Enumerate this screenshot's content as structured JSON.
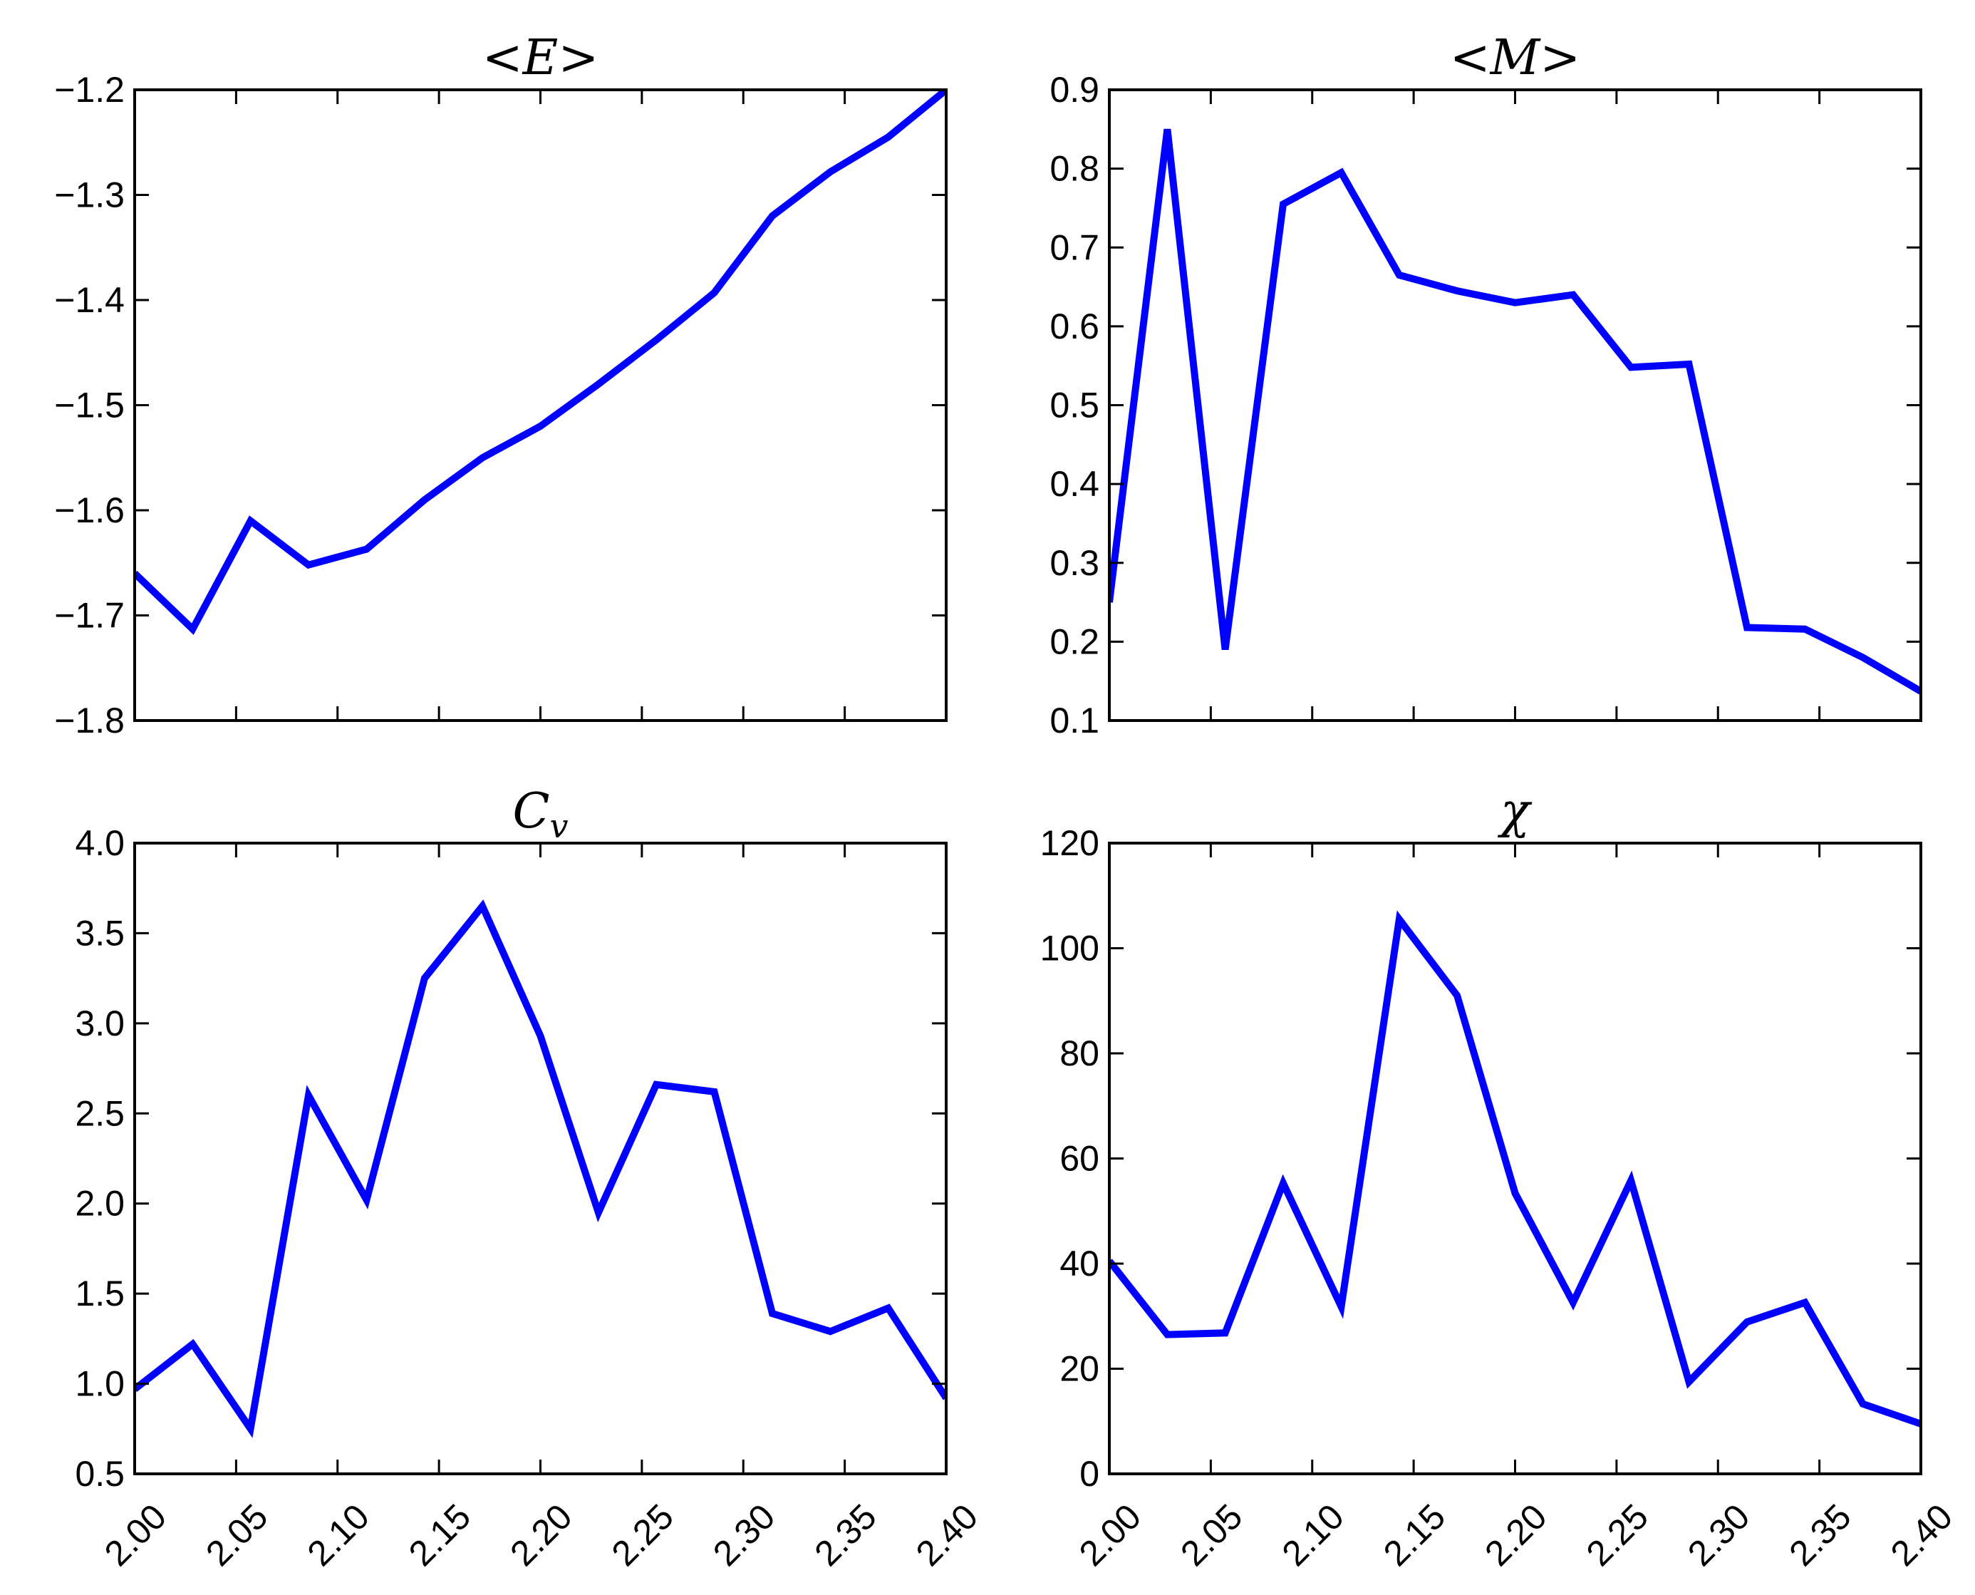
{
  "chart_data": [
    {
      "type": "line",
      "title": "<E>",
      "xlabel": "",
      "ylabel": "",
      "xlim": [
        2.0,
        2.4
      ],
      "ylim": [
        -1.8,
        -1.2
      ],
      "x_ticks": [
        2.0,
        2.05,
        2.1,
        2.15,
        2.2,
        2.25,
        2.3,
        2.35,
        2.4
      ],
      "x_tick_labels": [
        "2.00",
        "2.05",
        "2.10",
        "2.15",
        "2.20",
        "2.25",
        "2.30",
        "2.35",
        "2.40"
      ],
      "show_x_tick_labels": false,
      "y_ticks": [
        -1.8,
        -1.7,
        -1.6,
        -1.5,
        -1.4,
        -1.3,
        -1.2
      ],
      "y_tick_labels": [
        "−1.8",
        "−1.7",
        "−1.6",
        "−1.5",
        "−1.4",
        "−1.3",
        "−1.2"
      ],
      "grid": false,
      "color": "#0000ff",
      "x": [
        2.0,
        2.0286,
        2.0571,
        2.0857,
        2.1143,
        2.1429,
        2.1714,
        2.2,
        2.2286,
        2.2571,
        2.2857,
        2.3143,
        2.3429,
        2.3714,
        2.4
      ],
      "y": [
        -1.66,
        -1.713,
        -1.61,
        -1.652,
        -1.637,
        -1.59,
        -1.55,
        -1.52,
        -1.48,
        -1.438,
        -1.393,
        -1.32,
        -1.278,
        -1.245,
        -1.2
      ]
    },
    {
      "type": "line",
      "title": "<M>",
      "xlabel": "",
      "ylabel": "",
      "xlim": [
        2.0,
        2.4
      ],
      "ylim": [
        0.1,
        0.9
      ],
      "x_ticks": [
        2.0,
        2.05,
        2.1,
        2.15,
        2.2,
        2.25,
        2.3,
        2.35,
        2.4
      ],
      "x_tick_labels": [
        "2.00",
        "2.05",
        "2.10",
        "2.15",
        "2.20",
        "2.25",
        "2.30",
        "2.35",
        "2.40"
      ],
      "show_x_tick_labels": false,
      "y_ticks": [
        0.1,
        0.2,
        0.3,
        0.4,
        0.5,
        0.6,
        0.7,
        0.8,
        0.9
      ],
      "y_tick_labels": [
        "0.1",
        "0.2",
        "0.3",
        "0.4",
        "0.5",
        "0.6",
        "0.7",
        "0.8",
        "0.9"
      ],
      "grid": false,
      "color": "#0000ff",
      "x": [
        2.0,
        2.0286,
        2.0571,
        2.0857,
        2.1143,
        2.1429,
        2.1714,
        2.2,
        2.2286,
        2.2571,
        2.2857,
        2.3143,
        2.3429,
        2.3714,
        2.4
      ],
      "y": [
        0.25,
        0.85,
        0.19,
        0.755,
        0.795,
        0.665,
        0.645,
        0.63,
        0.64,
        0.548,
        0.552,
        0.218,
        0.216,
        0.18,
        0.137
      ]
    },
    {
      "type": "line",
      "title": "C_v",
      "xlabel": "",
      "ylabel": "",
      "xlim": [
        2.0,
        2.4
      ],
      "ylim": [
        0.5,
        4.0
      ],
      "x_ticks": [
        2.0,
        2.05,
        2.1,
        2.15,
        2.2,
        2.25,
        2.3,
        2.35,
        2.4
      ],
      "x_tick_labels": [
        "2.00",
        "2.05",
        "2.10",
        "2.15",
        "2.20",
        "2.25",
        "2.30",
        "2.35",
        "2.40"
      ],
      "show_x_tick_labels": true,
      "y_ticks": [
        0.5,
        1.0,
        1.5,
        2.0,
        2.5,
        3.0,
        3.5,
        4.0
      ],
      "y_tick_labels": [
        "0.5",
        "1.0",
        "1.5",
        "2.0",
        "2.5",
        "3.0",
        "3.5",
        "4.0"
      ],
      "grid": false,
      "color": "#0000ff",
      "x": [
        2.0,
        2.0286,
        2.0571,
        2.0857,
        2.1143,
        2.1429,
        2.1714,
        2.2,
        2.2286,
        2.2571,
        2.2857,
        2.3143,
        2.3429,
        2.3714,
        2.4
      ],
      "y": [
        0.97,
        1.22,
        0.75,
        2.6,
        2.02,
        3.25,
        3.65,
        2.93,
        1.95,
        2.66,
        2.62,
        1.39,
        1.29,
        1.42,
        0.92
      ]
    },
    {
      "type": "line",
      "title": "χ",
      "xlabel": "",
      "ylabel": "",
      "xlim": [
        2.0,
        2.4
      ],
      "ylim": [
        0,
        120
      ],
      "x_ticks": [
        2.0,
        2.05,
        2.1,
        2.15,
        2.2,
        2.25,
        2.3,
        2.35,
        2.4
      ],
      "x_tick_labels": [
        "2.00",
        "2.05",
        "2.10",
        "2.15",
        "2.20",
        "2.25",
        "2.30",
        "2.35",
        "2.40"
      ],
      "show_x_tick_labels": true,
      "y_ticks": [
        0,
        20,
        40,
        60,
        80,
        100,
        120
      ],
      "y_tick_labels": [
        "0",
        "20",
        "40",
        "60",
        "80",
        "100",
        "120"
      ],
      "grid": false,
      "color": "#0000ff",
      "x": [
        2.0,
        2.0286,
        2.0571,
        2.0857,
        2.1143,
        2.1429,
        2.1714,
        2.2,
        2.2286,
        2.2571,
        2.2857,
        2.3143,
        2.3429,
        2.3714,
        2.4
      ],
      "y": [
        40.5,
        26.5,
        26.8,
        55.3,
        31.8,
        105.5,
        91.0,
        53.4,
        32.6,
        55.8,
        17.5,
        28.9,
        32.6,
        13.3,
        9.5
      ]
    }
  ]
}
